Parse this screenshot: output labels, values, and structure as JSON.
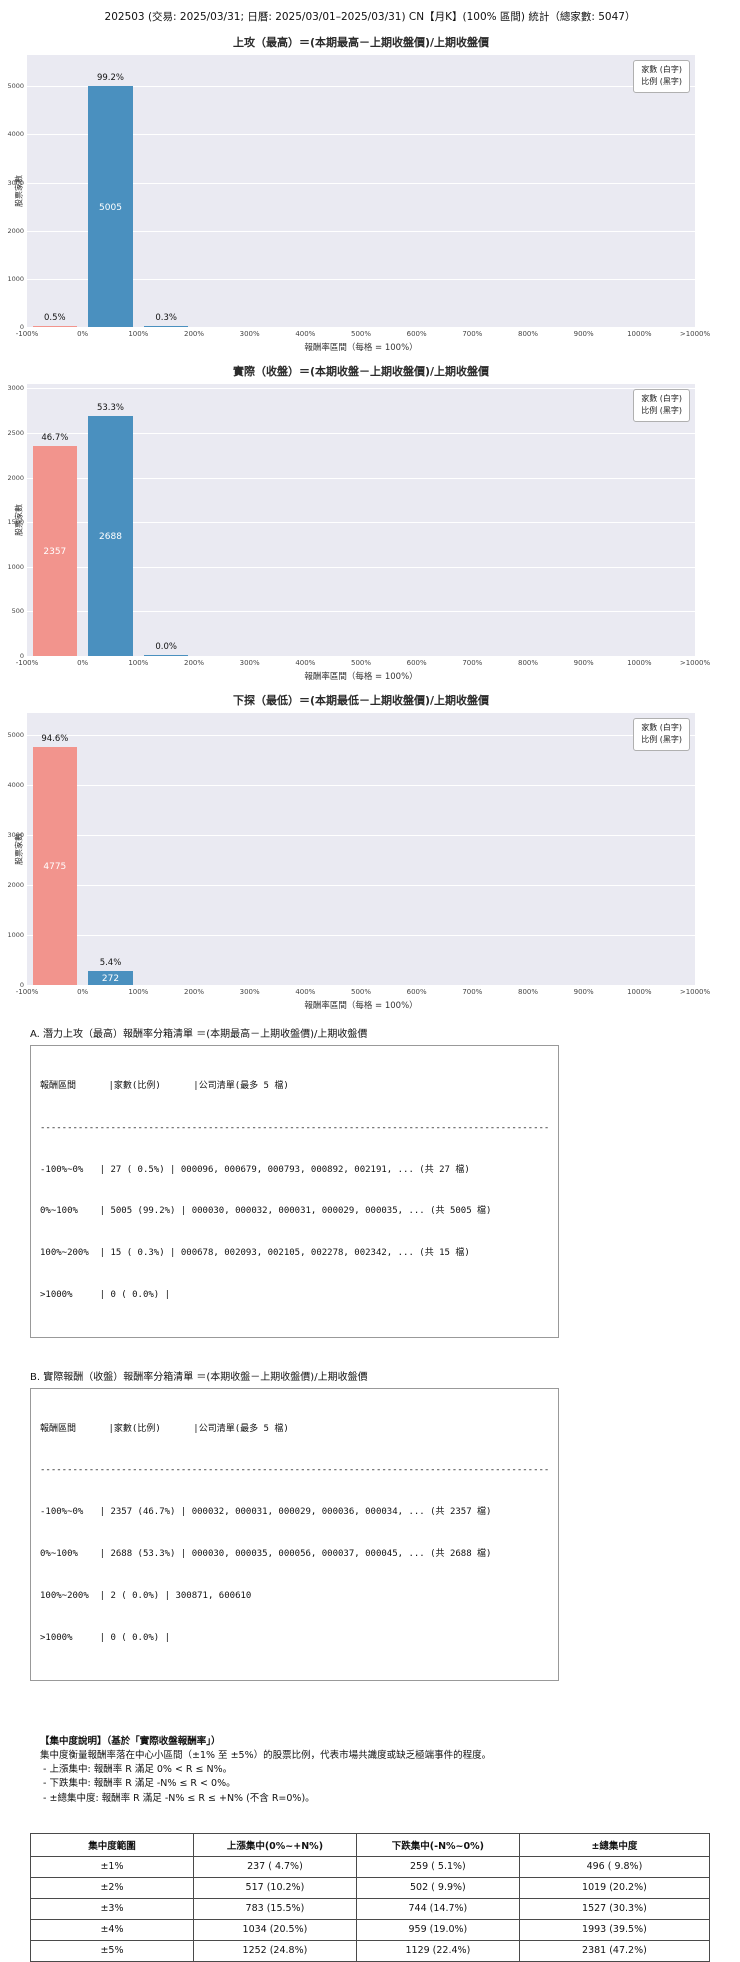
{
  "page_title": "202503 (交易: 2025/03/31; 日曆: 2025/03/01–2025/03/31) CN【月K】(100% 區間) 統計（總家數: 5047）",
  "colors": {
    "up": "#4a90bf",
    "down": "#f2948d",
    "plot_bg": "#eaeaf2",
    "grid": "#ffffff"
  },
  "chart_data": [
    {
      "type": "bar",
      "title": "上攻（最高）＝(本期最高－上期收盤價)/上期收盤價",
      "xlabel": "報酬率區間（每格 = 100%）",
      "ylabel": "股票家數",
      "x_ticks": [
        "-100%",
        "0%",
        "100%",
        "200%",
        "300%",
        "400%",
        "500%",
        "600%",
        "700%",
        "800%",
        "900%",
        "1000%",
        ">1000%"
      ],
      "y_ticks": [
        0,
        1000,
        2000,
        3000,
        4000,
        5000
      ],
      "ylim": [
        0,
        5650
      ],
      "legend": [
        "家數 (白字)",
        "比例 (黑字)"
      ],
      "grid": true,
      "bars": [
        {
          "bin": "-100%~0%",
          "bin_index": 0,
          "count": 27,
          "pct": "0.5%",
          "count_label": "",
          "color": "down"
        },
        {
          "bin": "0%~100%",
          "bin_index": 1,
          "count": 5005,
          "pct": "99.2%",
          "count_label": "5005",
          "color": "up"
        },
        {
          "bin": "100%~200%",
          "bin_index": 2,
          "count": 15,
          "pct": "0.3%",
          "count_label": "",
          "color": "up"
        }
      ]
    },
    {
      "type": "bar",
      "title": "實際（收盤）＝(本期收盤－上期收盤價)/上期收盤價",
      "xlabel": "報酬率區間（每格 = 100%）",
      "ylabel": "股票家數",
      "x_ticks": [
        "-100%",
        "0%",
        "100%",
        "200%",
        "300%",
        "400%",
        "500%",
        "600%",
        "700%",
        "800%",
        "900%",
        "1000%",
        ">1000%"
      ],
      "y_ticks": [
        0,
        500,
        1000,
        1500,
        2000,
        2500,
        3000
      ],
      "ylim": [
        0,
        3050
      ],
      "legend": [
        "家數 (白字)",
        "比例 (黑字)"
      ],
      "grid": true,
      "bars": [
        {
          "bin": "-100%~0%",
          "bin_index": 0,
          "count": 2357,
          "pct": "46.7%",
          "count_label": "2357",
          "color": "down"
        },
        {
          "bin": "0%~100%",
          "bin_index": 1,
          "count": 2688,
          "pct": "53.3%",
          "count_label": "2688",
          "color": "up"
        },
        {
          "bin": "100%~200%",
          "bin_index": 2,
          "count": 2,
          "pct": "0.0%",
          "count_label": "",
          "color": "up"
        }
      ]
    },
    {
      "type": "bar",
      "title": "下探（最低）＝(本期最低－上期收盤價)/上期收盤價",
      "xlabel": "報酬率區間（每格 = 100%）",
      "ylabel": "股票家數",
      "x_ticks": [
        "-100%",
        "0%",
        "100%",
        "200%",
        "300%",
        "400%",
        "500%",
        "600%",
        "700%",
        "800%",
        "900%",
        "1000%",
        ">1000%"
      ],
      "y_ticks": [
        0,
        1000,
        2000,
        3000,
        4000,
        5000
      ],
      "ylim": [
        0,
        5450
      ],
      "legend": [
        "家數 (白字)",
        "比例 (黑字)"
      ],
      "grid": true,
      "bars": [
        {
          "bin": "-100%~0%",
          "bin_index": 0,
          "count": 4775,
          "pct": "94.6%",
          "count_label": "4775",
          "color": "down"
        },
        {
          "bin": "0%~100%",
          "bin_index": 1,
          "count": 272,
          "pct": "5.4%",
          "count_label": "272",
          "color": "up"
        }
      ]
    }
  ],
  "section_a": {
    "heading": "A. 潛力上攻（最高）報酬率分箱清單 ＝(本期最高－上期收盤價)/上期收盤價",
    "lines": [
      "報酬區間      |家數(比例)      |公司清單(最多 5 檔)",
      "----------------------------------------------------------------------------------------------",
      "-100%~0%   | 27 ( 0.5%) | 000096, 000679, 000793, 000892, 002191, ... (共 27 檔)",
      "0%~100%    | 5005 (99.2%) | 000030, 000032, 000031, 000029, 000035, ... (共 5005 檔)",
      "100%~200%  | 15 ( 0.3%) | 000678, 002093, 002105, 002278, 002342, ... (共 15 檔)",
      ">1000%     | 0 ( 0.0%) |"
    ]
  },
  "section_b": {
    "heading": "B. 實際報酬（收盤）報酬率分箱清單 ＝(本期收盤－上期收盤價)/上期收盤價",
    "lines": [
      "報酬區間      |家數(比例)      |公司清單(最多 5 檔)",
      "----------------------------------------------------------------------------------------------",
      "-100%~0%   | 2357 (46.7%) | 000032, 000031, 000029, 000036, 000034, ... (共 2357 檔)",
      "0%~100%    | 2688 (53.3%) | 000030, 000035, 000056, 000037, 000045, ... (共 2688 檔)",
      "100%~200%  | 2 ( 0.0%) | 300871, 600610",
      ">1000%     | 0 ( 0.0%) |"
    ]
  },
  "concentration_note": {
    "title": "【集中度說明】（基於「實際收盤報酬率」）",
    "lines": [
      "集中度衡量報酬率落在中心小區間（±1% 至 ±5%）的股票比例，代表市場共識度或缺乏極端事件的程度。",
      " - 上漲集中: 報酬率 R 滿足 0% < R ≤ N%。",
      " - 下跌集中: 報酬率 R 滿足 -N% ≤ R < 0%。",
      " - ±總集中度: 報酬率 R 滿足 -N% ≤ R ≤ +N% (不含 R=0%)。"
    ]
  },
  "concentration_table": {
    "headers": [
      "集中度範圍",
      "上漲集中(0%~+N%)",
      "下跌集中(-N%~0%)",
      "±總集中度"
    ],
    "rows": [
      [
        "±1%",
        "237 ( 4.7%)",
        "259 ( 5.1%)",
        "496 ( 9.8%)"
      ],
      [
        "±2%",
        "517 (10.2%)",
        "502 ( 9.9%)",
        "1019 (20.2%)"
      ],
      [
        "±3%",
        "783 (15.5%)",
        "744 (14.7%)",
        "1527 (30.3%)"
      ],
      [
        "±4%",
        "1034 (20.5%)",
        "959 (19.0%)",
        "1993 (39.5%)"
      ],
      [
        "±5%",
        "1252 (24.8%)",
        "1129 (22.4%)",
        "2381 (47.2%)"
      ]
    ]
  }
}
